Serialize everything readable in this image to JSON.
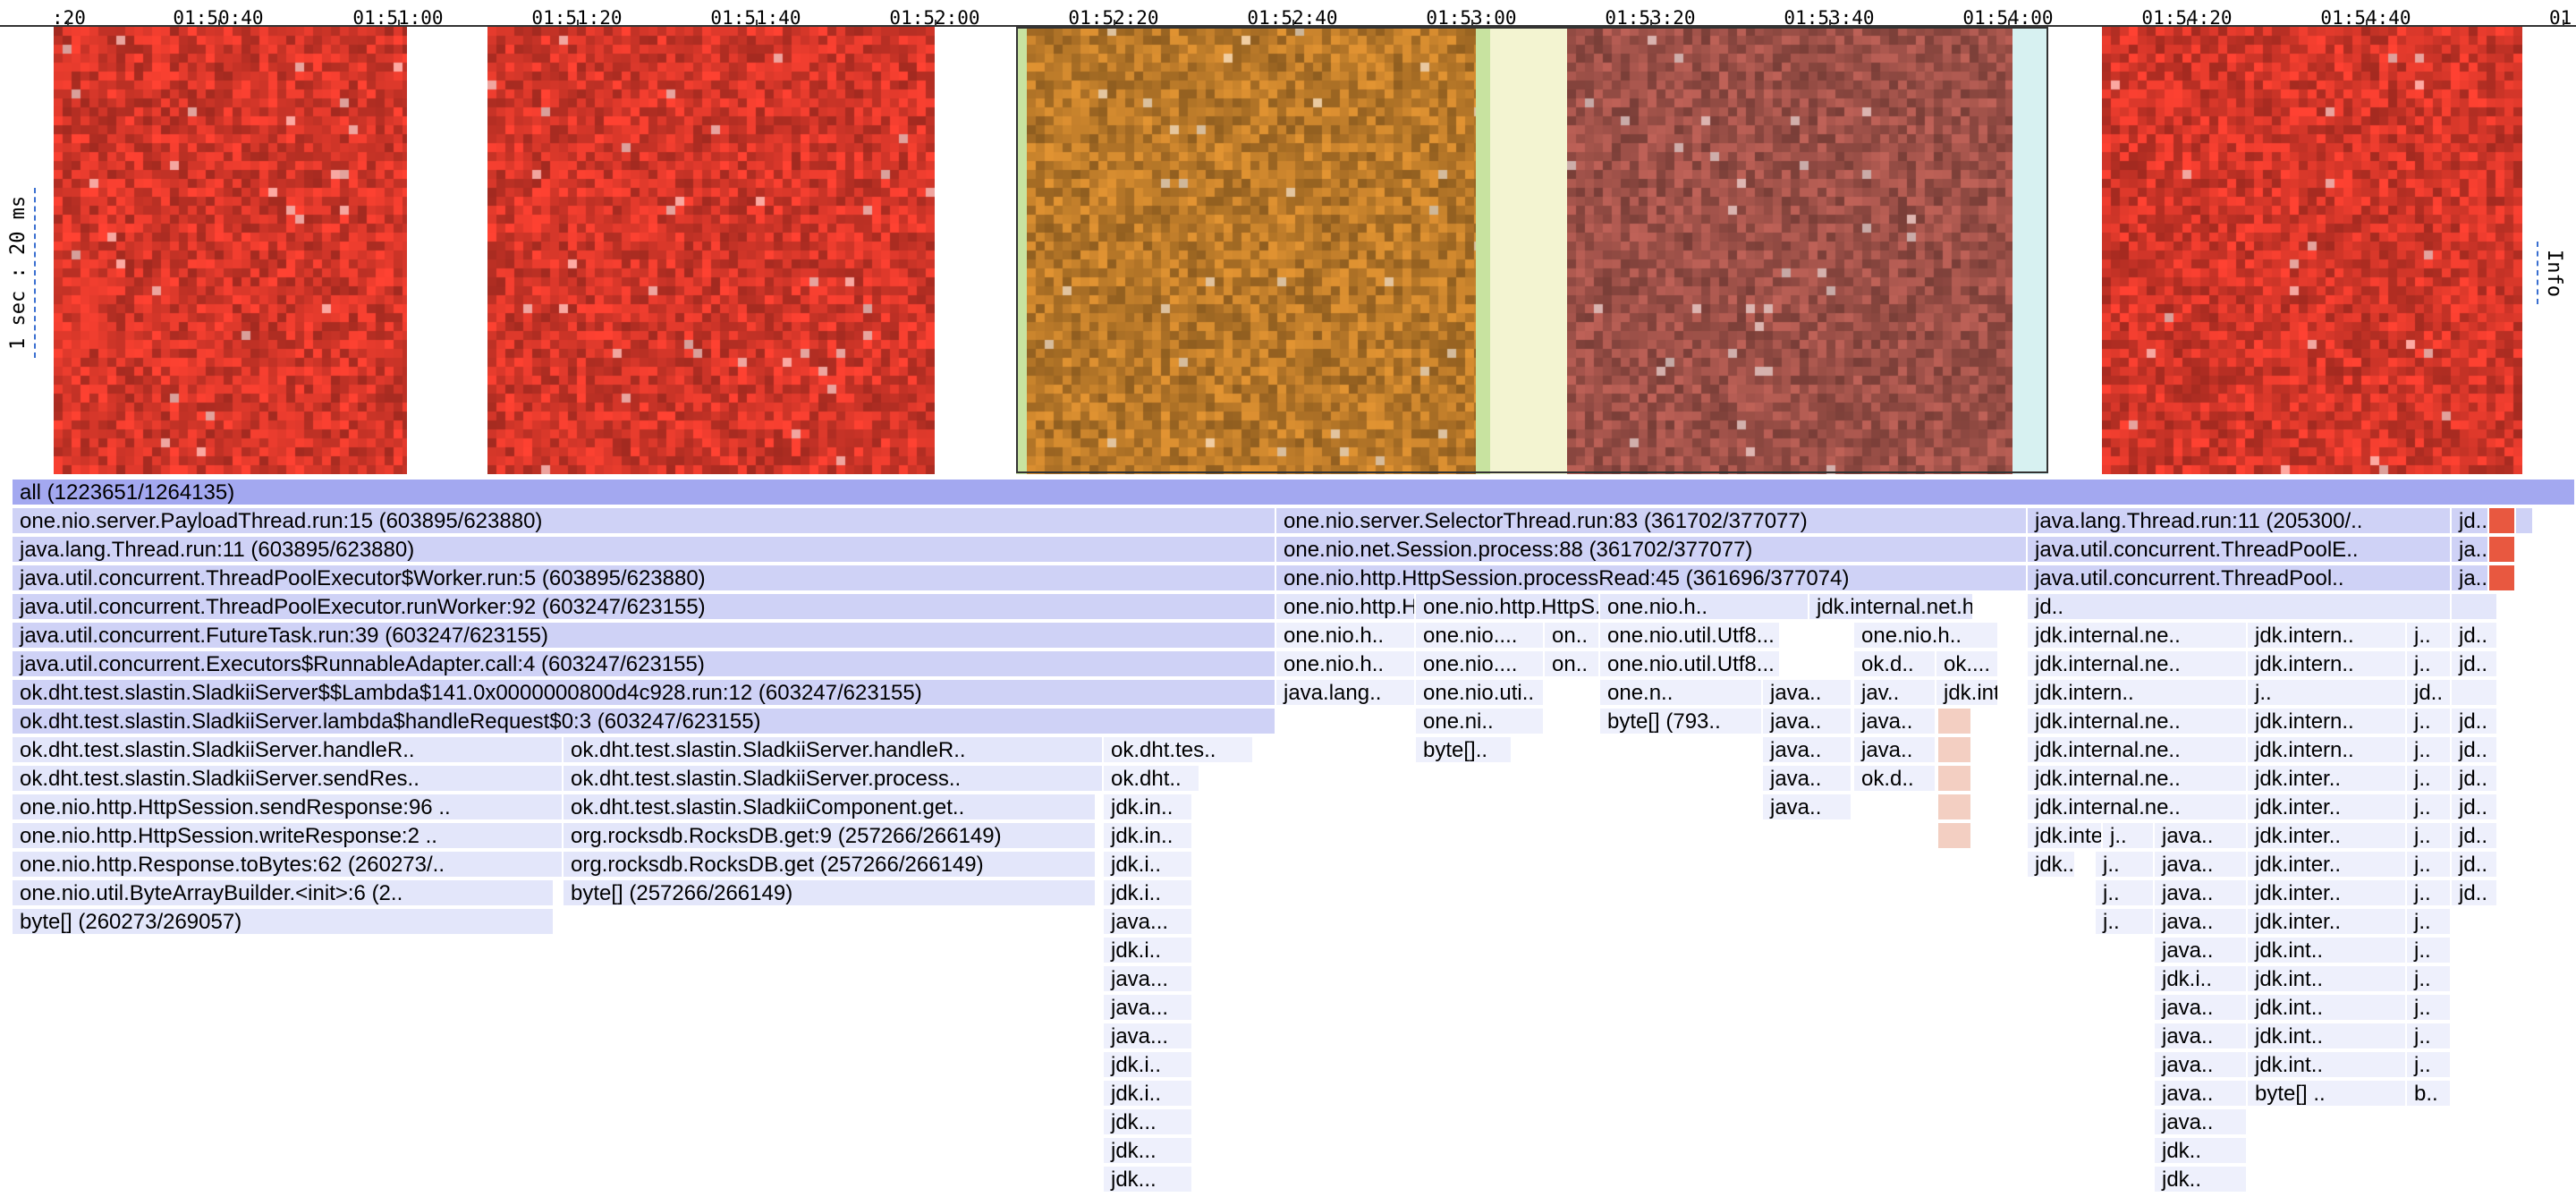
{
  "timeline": {
    "ticks": [
      ":20",
      "01:50:40",
      "01:51:00",
      "01:51:20",
      "01:51:40",
      "01:52:00",
      "01:52:20",
      "01:52:40",
      "01:53:00",
      "01:53:20",
      "01:53:40",
      "01:54:00",
      "01:54:20",
      "01:54:40",
      "01"
    ]
  },
  "heatmap": {
    "legend_left": "1 sec : 20 ms",
    "legend_right": "Info",
    "colors": {
      "red": "#e23a2c",
      "orange": "#c7822c",
      "brown": "#a8564d",
      "light_green": "#c8e3a0",
      "pale_yellow": "#f3f4d1",
      "pale_cyan": "#d7f1f1"
    }
  },
  "flamegraph": {
    "colors": {
      "root": "#a3a8f0",
      "level": "#cfd2f6",
      "light": "#e3e6fa",
      "lighter": "#eef0fc",
      "salmon": "#f3cfc2",
      "hot": "#e85840"
    },
    "rows": [
      [
        "all (1223651/1264135)"
      ],
      [
        "one.nio.server.PayloadThread.run:15 (603895/623880)",
        "one.nio.server.SelectorThread.run:83 (361702/377077)",
        "java.lang.Thread.run:11 (205300/..",
        "jd.."
      ],
      [
        "java.lang.Thread.run:11 (603895/623880)",
        "one.nio.net.Session.process:88 (361702/377077)",
        "java.util.concurrent.ThreadPoolE..",
        "ja.."
      ],
      [
        "java.util.concurrent.ThreadPoolExecutor$Worker.run:5 (603895/623880)",
        "one.nio.http.HttpSession.processRead:45 (361696/377074)",
        "java.util.concurrent.ThreadPool..",
        "ja.."
      ],
      [
        "java.util.concurrent.ThreadPoolExecutor.runWorker:92 (603247/623155)",
        "one.nio.http.HttpSessio..",
        "one.nio.http.HttpS..",
        "one.nio.h..",
        "jdk.internal.net.http.common..",
        "jd.."
      ],
      [
        "java.util.concurrent.FutureTask.run:39 (603247/623155)",
        "one.nio.h..",
        "one.nio....",
        "on..",
        "one.nio.util.Utf8...",
        "one.nio.h..",
        "jdk.internal.ne..",
        "jdk.intern..",
        "j..",
        "jd.."
      ],
      [
        "java.util.concurrent.Executors$RunnableAdapter.call:4 (603247/623155)",
        "one.nio.h..",
        "one.nio....",
        "on..",
        "one.nio.util.Utf8...",
        "ok.d..",
        "ok....",
        "jdk.internal.ne..",
        "jdk.intern..",
        "j..",
        "jd.."
      ],
      [
        "ok.dht.test.slastin.SladkiiServer$$Lambda$141.0x0000000800d4c928.run:12 (603247/623155)",
        "java.lang..",
        "one.nio.uti..",
        "one.n..",
        "java..",
        "jav..",
        "jdk.internal.ne..",
        "jdk.intern..",
        "j..",
        "jd.."
      ],
      [
        "ok.dht.test.slastin.SladkiiServer.lambda$handleRequest$0:3 (603247/623155)",
        "one.ni..",
        "byte[] (793..",
        "java..",
        "java..",
        "jdk.internal.ne..",
        "jdk.intern..",
        "j..",
        "jd.."
      ],
      [
        "ok.dht.test.slastin.SladkiiServer.handleR..",
        "ok.dht.test.slastin.SladkiiServer.handleR..",
        "ok.dht.tes..",
        "byte[]..",
        "java..",
        "java..",
        "jdk.internal.ne..",
        "jdk.intern..",
        "j..",
        "jd.."
      ],
      [
        "ok.dht.test.slastin.SladkiiServer.sendRes..",
        "ok.dht.test.slastin.SladkiiServer.process..",
        "ok.dht..",
        "java..",
        "ok.d..",
        "jdk.internal.ne..",
        "jdk.inter..",
        "j..",
        "jd.."
      ],
      [
        "one.nio.http.HttpSession.sendResponse:96 ..",
        "ok.dht.test.slastin.SladkiiComponent.get..",
        "jdk.in..",
        "java..",
        "jdk.internal.ne..",
        "jdk.inter..",
        "j..",
        "jd.."
      ],
      [
        "one.nio.http.HttpSession.writeResponse:2 ..",
        "org.rocksdb.RocksDB.get:9 (257266/266149)",
        "jdk.in..",
        "jdk.inte..",
        "j..",
        "java..",
        "jdk.inter..",
        "j..",
        "jd.."
      ],
      [
        "one.nio.http.Response.toBytes:62 (260273/..",
        "org.rocksdb.RocksDB.get (257266/266149)",
        "jdk.i..",
        "jdk..",
        "j..",
        "java..",
        "jdk.inter..",
        "j..",
        "jd.."
      ],
      [
        "one.nio.util.ByteArrayBuilder.<init>:6 (2..",
        "byte[] (257266/266149)",
        "jdk.i..",
        "j..",
        "java..",
        "jdk.inter..",
        "j..",
        "jd.."
      ],
      [
        "byte[] (260273/269057)",
        "java...",
        "j..",
        "java..",
        "jdk.inter..",
        "j.."
      ],
      [
        "jdk.i..",
        "java..",
        "jdk.int..",
        "j.."
      ],
      [
        "java...",
        "jdk.i..",
        "jdk.int..",
        "j.."
      ],
      [
        "java...",
        "java..",
        "jdk.int..",
        "j.."
      ],
      [
        "java...",
        "java..",
        "jdk.int..",
        "j.."
      ],
      [
        "jdk.i..",
        "java..",
        "jdk.int..",
        "j.."
      ],
      [
        "jdk.i..",
        "java..",
        "byte[] ..",
        "b.."
      ],
      [
        "jdk...",
        "java.."
      ],
      [
        "jdk...",
        "jdk.."
      ],
      [
        "jdk...",
        "jdk.."
      ]
    ]
  }
}
